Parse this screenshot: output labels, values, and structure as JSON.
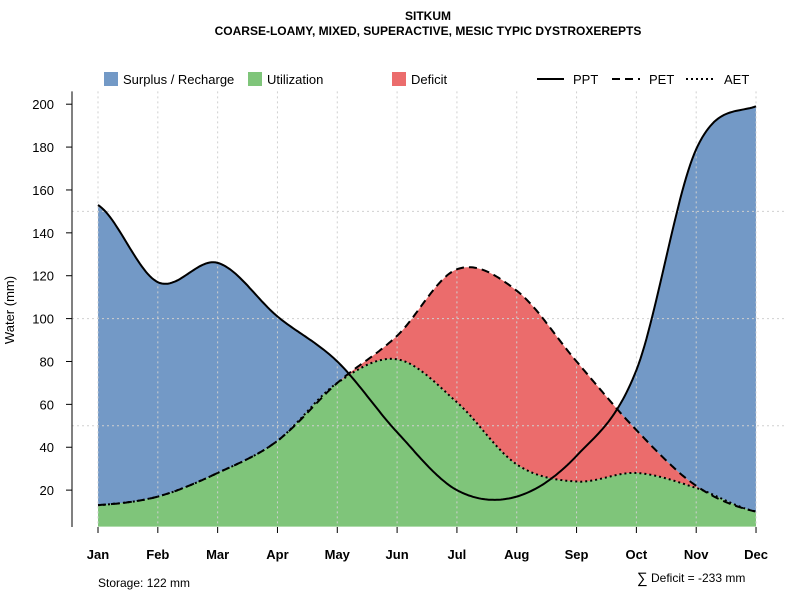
{
  "chart_data": {
    "type": "area",
    "title": "SITKUM",
    "subtitle": "COARSE-LOAMY, MIXED, SUPERACTIVE, MESIC TYPIC DYSTROXEREPTS",
    "xlabel": "",
    "ylabel": "Water (mm)",
    "ylim": [
      3,
      206
    ],
    "y_ticks": [
      20,
      40,
      60,
      80,
      100,
      120,
      140,
      160,
      180,
      200
    ],
    "grid": true,
    "categories": [
      "Jan",
      "Feb",
      "Mar",
      "Apr",
      "May",
      "Jun",
      "Jul",
      "Aug",
      "Sep",
      "Oct",
      "Nov",
      "Dec"
    ],
    "series": [
      {
        "name": "PPT",
        "style": "solid",
        "values": [
          153,
          117,
          126,
          101,
          80,
          47,
          20,
          17,
          36,
          76,
          179,
          199
        ]
      },
      {
        "name": "PET",
        "style": "dashed",
        "values": [
          13,
          17,
          28,
          43,
          70,
          92,
          123,
          113,
          80,
          48,
          22,
          10
        ]
      },
      {
        "name": "AET",
        "style": "dotted",
        "values": [
          13,
          17,
          28,
          43,
          70,
          81,
          61,
          32,
          24,
          28,
          21,
          10
        ]
      }
    ],
    "legend": [
      {
        "label": "Surplus / Recharge",
        "color": "#7399c6"
      },
      {
        "label": "Utilization",
        "color": "#7fc57a"
      },
      {
        "label": "Deficit",
        "color": "#eb6c6c"
      },
      {
        "label": "PPT"
      },
      {
        "label": "PET"
      },
      {
        "label": "AET"
      }
    ],
    "legend_position": "top",
    "annotations": {
      "storage": "Storage: 122 mm",
      "deficit": "Deficit = -233 mm",
      "deficit_symbol": "∑"
    }
  }
}
